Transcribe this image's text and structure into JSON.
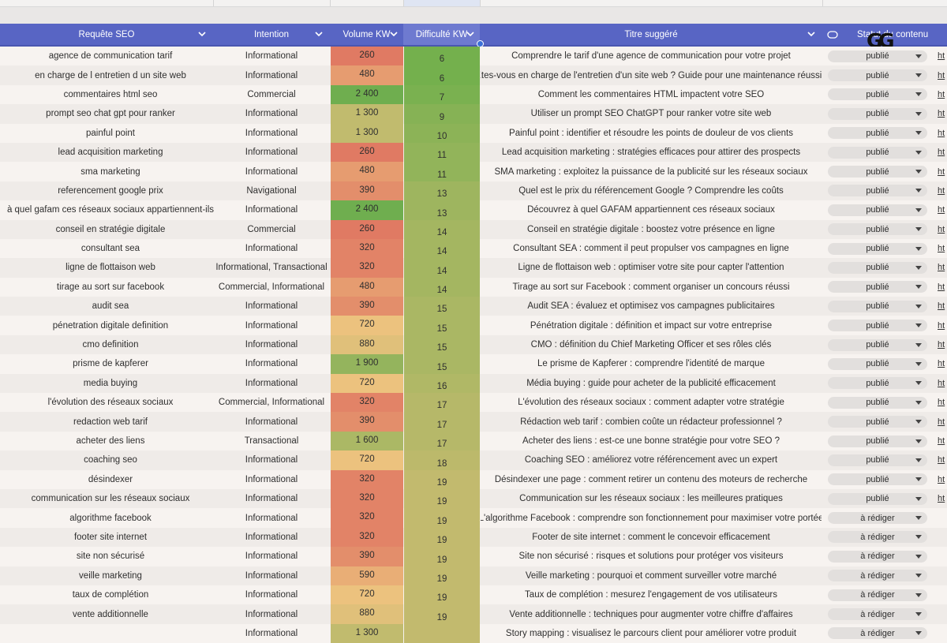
{
  "columns": {
    "query": "Requête SEO",
    "intent": "Intention",
    "volume": "Volume KW",
    "difficulty": "Difficulté KW",
    "title": "Titre suggéré",
    "status": "Statut du contenu"
  },
  "logo": {
    "text": "GG"
  },
  "colors": {
    "header": "#5865c4",
    "volume_scale": {
      "low": "#e07a63",
      "mid": "#ecc27e",
      "high": "#6fae4f"
    },
    "difficulty_scale": {
      "easy": "#74b04d",
      "hard": "#c2ba6e"
    }
  },
  "rows": [
    {
      "query": "agence de communication tarif",
      "intent": "Informational",
      "volume": "260",
      "difficulty": "6",
      "title": "Comprendre le tarif d'une agence de communication pour votre projet",
      "status": "publié",
      "url": "ht"
    },
    {
      "query": "en charge de l entretien d un site web",
      "intent": "Informational",
      "volume": "480",
      "difficulty": "6",
      "title": "Êtes-vous en charge de l'entretien d'un site web ? Guide pour une maintenance réussie",
      "status": "publié",
      "url": "ht"
    },
    {
      "query": "commentaires html seo",
      "intent": "Commercial",
      "volume": "2 400",
      "difficulty": "7",
      "title": "Comment les commentaires HTML impactent votre SEO",
      "status": "publié",
      "url": "ht"
    },
    {
      "query": "prompt seo chat gpt pour ranker",
      "intent": "Informational",
      "volume": "1 300",
      "difficulty": "9",
      "title": "Utiliser un prompt SEO ChatGPT pour ranker votre site web",
      "status": "publié",
      "url": "ht"
    },
    {
      "query": "painful point",
      "intent": "Informational",
      "volume": "1 300",
      "difficulty": "10",
      "title": "Painful point : identifier et résoudre les points de douleur de vos clients",
      "status": "publié",
      "url": "ht"
    },
    {
      "query": "lead acquisition marketing",
      "intent": "Informational",
      "volume": "260",
      "difficulty": "11",
      "title": "Lead acquisition marketing : stratégies efficaces pour attirer des prospects",
      "status": "publié",
      "url": "ht"
    },
    {
      "query": "sma marketing",
      "intent": "Informational",
      "volume": "480",
      "difficulty": "11",
      "title": "SMA marketing : exploitez la puissance de la publicité sur les réseaux sociaux",
      "status": "publié",
      "url": "ht"
    },
    {
      "query": "referencement google prix",
      "intent": "Navigational",
      "volume": "390",
      "difficulty": "13",
      "title": "Quel est le prix du référencement Google ? Comprendre les coûts",
      "status": "publié",
      "url": "ht"
    },
    {
      "query": "à quel gafam ces réseaux sociaux appartiennent-ils",
      "intent": "Informational",
      "volume": "2 400",
      "difficulty": "13",
      "title": "Découvrez à quel GAFAM appartiennent ces réseaux sociaux",
      "status": "publié",
      "url": "ht"
    },
    {
      "query": "conseil en stratégie digitale",
      "intent": "Commercial",
      "volume": "260",
      "difficulty": "14",
      "title": "Conseil en stratégie digitale : boostez votre présence en ligne",
      "status": "publié",
      "url": "ht"
    },
    {
      "query": "consultant sea",
      "intent": "Informational",
      "volume": "320",
      "difficulty": "14",
      "title": "Consultant SEA : comment il peut propulser vos campagnes en ligne",
      "status": "publié",
      "url": "ht"
    },
    {
      "query": "ligne de flottaison web",
      "intent": "Informational, Transactional",
      "volume": "320",
      "difficulty": "14",
      "title": "Ligne de flottaison web : optimiser votre site pour capter l'attention",
      "status": "publié",
      "url": "ht"
    },
    {
      "query": "tirage au sort sur facebook",
      "intent": "Commercial, Informational",
      "volume": "480",
      "difficulty": "14",
      "title": "Tirage au sort sur Facebook : comment organiser un concours réussi",
      "status": "publié",
      "url": "ht"
    },
    {
      "query": "audit sea",
      "intent": "Informational",
      "volume": "390",
      "difficulty": "15",
      "title": "Audit SEA : évaluez et optimisez vos campagnes publicitaires",
      "status": "publié",
      "url": "ht"
    },
    {
      "query": "pénetration digitale definition",
      "intent": "Informational",
      "volume": "720",
      "difficulty": "15",
      "title": "Pénétration digitale : définition et impact sur votre entreprise",
      "status": "publié",
      "url": "ht"
    },
    {
      "query": "cmo definition",
      "intent": "Informational",
      "volume": "880",
      "difficulty": "15",
      "title": "CMO : définition du Chief Marketing Officer et ses rôles clés",
      "status": "publié",
      "url": "ht"
    },
    {
      "query": "prisme de kapferer",
      "intent": "Informational",
      "volume": "1 900",
      "difficulty": "15",
      "title": "Le prisme de Kapferer : comprendre l'identité de marque",
      "status": "publié",
      "url": "ht"
    },
    {
      "query": "media buying",
      "intent": "Informational",
      "volume": "720",
      "difficulty": "16",
      "title": "Média buying : guide pour acheter de la publicité efficacement",
      "status": "publié",
      "url": "ht"
    },
    {
      "query": "l'évolution des réseaux sociaux",
      "intent": "Commercial, Informational",
      "volume": "320",
      "difficulty": "17",
      "title": "L'évolution des réseaux sociaux : comment adapter votre stratégie",
      "status": "publié",
      "url": "ht"
    },
    {
      "query": "redaction web tarif",
      "intent": "Informational",
      "volume": "390",
      "difficulty": "17",
      "title": "Rédaction web tarif : combien coûte un rédacteur professionnel ?",
      "status": "publié",
      "url": "ht"
    },
    {
      "query": "acheter des liens",
      "intent": "Transactional",
      "volume": "1 600",
      "difficulty": "17",
      "title": "Acheter des liens : est-ce une bonne stratégie pour votre SEO ?",
      "status": "publié",
      "url": "ht"
    },
    {
      "query": "coaching seo",
      "intent": "Informational",
      "volume": "720",
      "difficulty": "18",
      "title": "Coaching SEO : améliorez votre référencement avec un expert",
      "status": "publié",
      "url": "ht"
    },
    {
      "query": "désindexer",
      "intent": "Informational",
      "volume": "320",
      "difficulty": "19",
      "title": "Désindexer une page : comment retirer un contenu des moteurs de recherche",
      "status": "publié",
      "url": "ht"
    },
    {
      "query": "communication sur les réseaux sociaux",
      "intent": "Informational",
      "volume": "320",
      "difficulty": "19",
      "title": "Communication sur les réseaux sociaux : les meilleures pratiques",
      "status": "publié",
      "url": "ht"
    },
    {
      "query": "algorithme facebook",
      "intent": "Informational",
      "volume": "320",
      "difficulty": "19",
      "title": "L'algorithme Facebook : comprendre son fonctionnement pour maximiser votre portée",
      "status": "à rédiger",
      "url": ""
    },
    {
      "query": "footer site internet",
      "intent": "Informational",
      "volume": "320",
      "difficulty": "19",
      "title": "Footer de site internet : comment le concevoir efficacement",
      "status": "à rédiger",
      "url": ""
    },
    {
      "query": "site non sécurisé",
      "intent": "Informational",
      "volume": "390",
      "difficulty": "19",
      "title": "Site non sécurisé : risques et solutions pour protéger vos visiteurs",
      "status": "à rédiger",
      "url": ""
    },
    {
      "query": "veille marketing",
      "intent": "Informational",
      "volume": "590",
      "difficulty": "19",
      "title": "Veille marketing : pourquoi et comment surveiller votre marché",
      "status": "à rédiger",
      "url": ""
    },
    {
      "query": "taux de complétion",
      "intent": "Informational",
      "volume": "720",
      "difficulty": "19",
      "title": "Taux de complétion : mesurez l'engagement de vos utilisateurs",
      "status": "à rédiger",
      "url": ""
    },
    {
      "query": "vente additionnelle",
      "intent": "Informational",
      "volume": "880",
      "difficulty": "19",
      "title": "Vente additionnelle : techniques pour augmenter votre chiffre d'affaires",
      "status": "à rédiger",
      "url": ""
    },
    {
      "query": "",
      "intent": "Informational",
      "volume": "1 300",
      "difficulty": "",
      "title": "Story mapping : visualisez le parcours client pour améliorer votre produit",
      "status": "à rédiger",
      "url": ""
    }
  ]
}
